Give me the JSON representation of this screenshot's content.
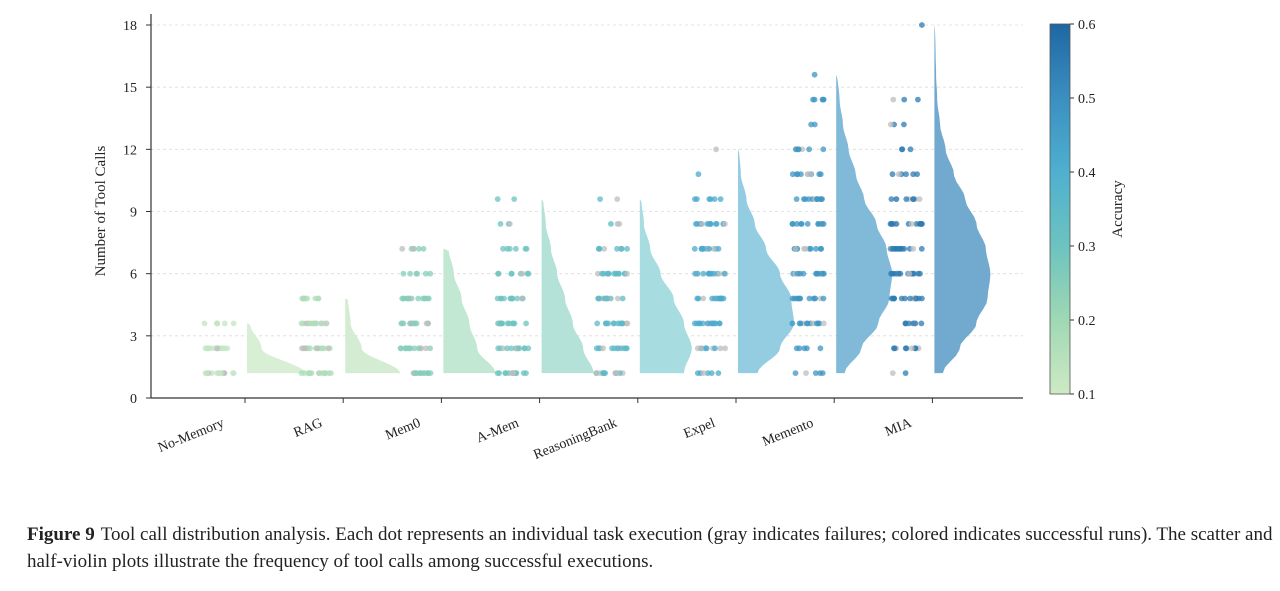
{
  "chart_data": {
    "type": "violin-scatter",
    "title": "",
    "xlabel": "",
    "ylabel": "Number of Tool Calls",
    "ylim": [
      0,
      18
    ],
    "yticks": [
      0,
      3,
      6,
      9,
      12,
      15,
      18
    ],
    "grid": "horizontal dashed",
    "categories": [
      "No-Memory",
      "RAG",
      "Mem0",
      "A-Mem",
      "ReasoningBank",
      "Expel",
      "Memento",
      "MIA"
    ],
    "colorbar": {
      "label": "Accuracy",
      "range": [
        0.1,
        0.6
      ],
      "ticks": [
        "0.1",
        "0.2",
        "0.3",
        "0.4",
        "0.5",
        "0.6"
      ],
      "colors": [
        "#cdeac4",
        "#9fd8b4",
        "#6cc3bf",
        "#4fb0cf",
        "#3a8fc0",
        "#1f67a3"
      ]
    },
    "failure_color": "#bdbdbd",
    "series": [
      {
        "name": "No-Memory",
        "accuracy": 0.12,
        "violin_color": "#d7eed3",
        "levels": [
          1.2,
          2.4,
          3.6
        ],
        "density": [
          1.0,
          0.25,
          0.05
        ],
        "violin_max": 3.6,
        "dot_counts": [
          [
            1.2,
            14
          ],
          [
            2.4,
            14
          ],
          [
            3.6,
            6
          ]
        ]
      },
      {
        "name": "RAG",
        "accuracy": 0.17,
        "violin_color": "#d2ecd0",
        "levels": [
          1.2,
          2.4,
          3.6,
          4.8
        ],
        "density": [
          1.0,
          0.3,
          0.1,
          0.05
        ],
        "violin_max": 4.8,
        "dot_counts": [
          [
            1.2,
            14
          ],
          [
            2.4,
            14
          ],
          [
            3.6,
            12
          ],
          [
            4.8,
            8
          ]
        ]
      },
      {
        "name": "Mem0",
        "accuracy": 0.25,
        "violin_color": "#bfe6d1",
        "levels": [
          1.2,
          2.4,
          3.6,
          4.8,
          6.0,
          7.2
        ],
        "density": [
          1.0,
          0.65,
          0.5,
          0.35,
          0.2,
          0.1
        ],
        "violin_max": 7.2,
        "dot_counts": [
          [
            1.2,
            14
          ],
          [
            2.4,
            14
          ],
          [
            3.6,
            14
          ],
          [
            4.8,
            14
          ],
          [
            6.0,
            6
          ],
          [
            7.2,
            6
          ]
        ]
      },
      {
        "name": "A-Mem",
        "accuracy": 0.3,
        "violin_color": "#b0e0d6",
        "levels": [
          1.2,
          2.4,
          3.6,
          4.8,
          6.0,
          7.2,
          8.4,
          9.6
        ],
        "density": [
          1.0,
          0.8,
          0.6,
          0.45,
          0.3,
          0.18,
          0.08,
          0.03
        ],
        "violin_max": 9.6,
        "dot_counts": [
          [
            1.2,
            14
          ],
          [
            2.4,
            14
          ],
          [
            3.6,
            14
          ],
          [
            4.8,
            12
          ],
          [
            6.0,
            8
          ],
          [
            7.2,
            6
          ],
          [
            8.4,
            3
          ],
          [
            9.6,
            2
          ]
        ]
      },
      {
        "name": "ReasoningBank",
        "accuracy": 0.35,
        "violin_color": "#a2dade",
        "levels": [
          1.2,
          2.4,
          3.6,
          4.8,
          6.0,
          7.2,
          8.4,
          9.6
        ],
        "density": [
          0.85,
          1.0,
          0.85,
          0.65,
          0.4,
          0.2,
          0.08,
          0.03
        ],
        "violin_max": 9.6,
        "dot_counts": [
          [
            1.2,
            14
          ],
          [
            2.4,
            13
          ],
          [
            3.6,
            14
          ],
          [
            4.8,
            13
          ],
          [
            6.0,
            14
          ],
          [
            7.2,
            9
          ],
          [
            8.4,
            3
          ],
          [
            9.6,
            2
          ]
        ]
      },
      {
        "name": "Expel",
        "accuracy": 0.42,
        "violin_color": "#8ec9e0",
        "levels": [
          1.2,
          2.4,
          3.6,
          4.8,
          6.0,
          7.2,
          8.4,
          9.6,
          10.8,
          12.0
        ],
        "density": [
          0.35,
          0.75,
          1.0,
          0.95,
          0.75,
          0.5,
          0.3,
          0.15,
          0.05,
          0.02
        ],
        "violin_max": 12.0,
        "dot_counts": [
          [
            1.2,
            6
          ],
          [
            2.4,
            9
          ],
          [
            3.6,
            14
          ],
          [
            4.8,
            14
          ],
          [
            6.0,
            14
          ],
          [
            7.2,
            12
          ],
          [
            8.4,
            14
          ],
          [
            9.6,
            6
          ],
          [
            10.8,
            1
          ],
          [
            12.0,
            1
          ]
        ]
      },
      {
        "name": "Memento",
        "accuracy": 0.48,
        "violin_color": "#7ab5d6",
        "levels": [
          1.2,
          2.4,
          3.6,
          4.8,
          6.0,
          7.2,
          8.4,
          9.6,
          10.8,
          12.0,
          13.2,
          14.4,
          15.6
        ],
        "density": [
          0.15,
          0.45,
          0.75,
          0.95,
          1.0,
          0.9,
          0.72,
          0.5,
          0.35,
          0.22,
          0.12,
          0.06,
          0.02
        ],
        "violin_max": 15.6,
        "dot_counts": [
          [
            1.2,
            5
          ],
          [
            2.4,
            5
          ],
          [
            3.6,
            12
          ],
          [
            4.8,
            12
          ],
          [
            6.0,
            12
          ],
          [
            7.2,
            12
          ],
          [
            8.4,
            12
          ],
          [
            9.6,
            12
          ],
          [
            10.8,
            10
          ],
          [
            12.0,
            7
          ],
          [
            13.2,
            2
          ],
          [
            14.4,
            5
          ],
          [
            15.6,
            1
          ]
        ]
      },
      {
        "name": "MIA",
        "accuracy": 0.55,
        "violin_color": "#6aa5cc",
        "levels": [
          1.2,
          2.4,
          3.6,
          4.8,
          6.0,
          7.2,
          8.4,
          9.6,
          10.8,
          12.0,
          13.2,
          14.4,
          15.6,
          16.8,
          18.0
        ],
        "density": [
          0.15,
          0.45,
          0.75,
          0.95,
          1.0,
          0.92,
          0.75,
          0.55,
          0.35,
          0.2,
          0.1,
          0.05,
          0.03,
          0.02,
          0.01
        ],
        "violin_max": 18.0,
        "dot_counts": [
          [
            1.2,
            2
          ],
          [
            2.4,
            9
          ],
          [
            3.6,
            8
          ],
          [
            4.8,
            14
          ],
          [
            6.0,
            14
          ],
          [
            7.2,
            14
          ],
          [
            8.4,
            14
          ],
          [
            9.6,
            9
          ],
          [
            10.8,
            6
          ],
          [
            12.0,
            3
          ],
          [
            13.2,
            3
          ],
          [
            14.4,
            3
          ],
          [
            18.0,
            1
          ]
        ]
      }
    ]
  },
  "caption": {
    "label": "Figure 9",
    "text": "Tool call distribution analysis. Each dot represents an individual task execution (gray indicates failures; colored indicates successful runs). The scatter and half-violin plots illustrate the frequency of tool calls among successful executions."
  }
}
